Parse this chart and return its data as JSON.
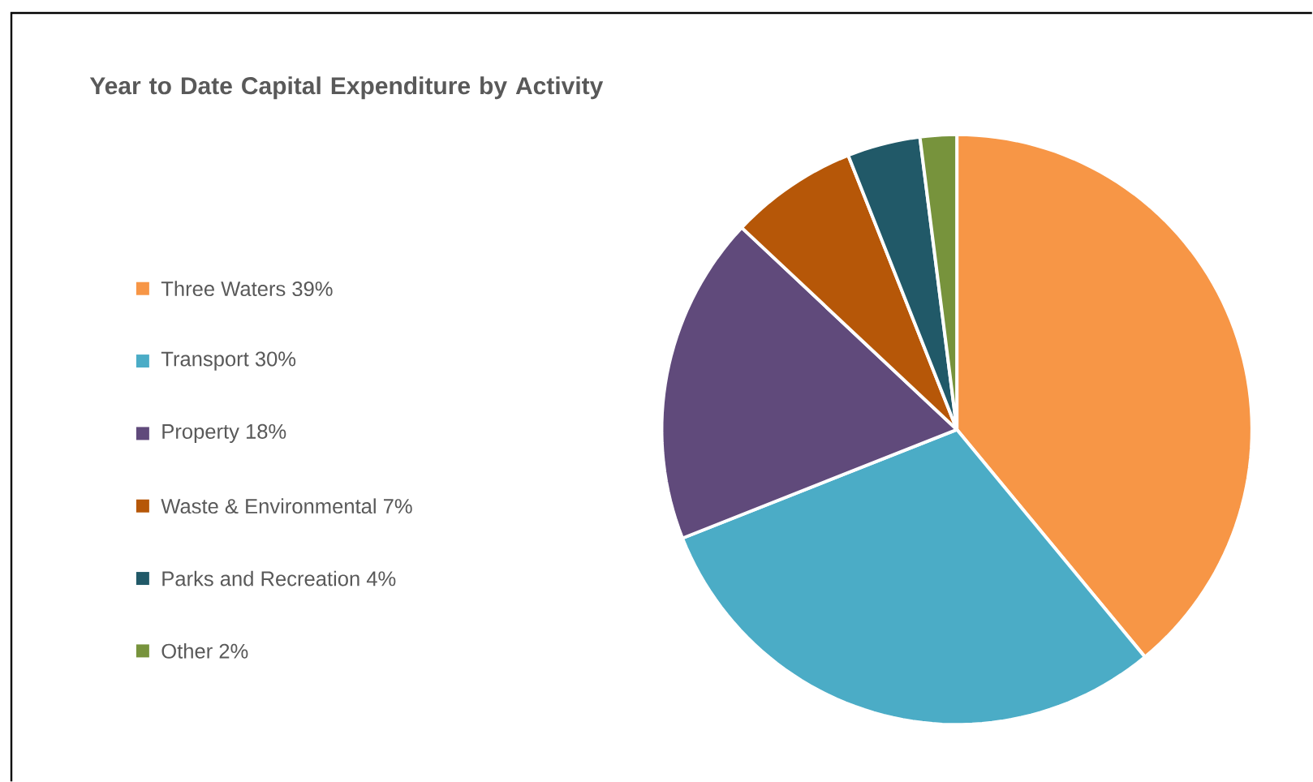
{
  "chart_data": {
    "type": "pie",
    "title": "Year to Date Capital Expenditure by Activity",
    "categories": [
      "Three Waters 39%",
      "Transport 30%",
      "Property 18%",
      "Waste & Environmental 7%",
      "Parks and Recreation 4%",
      "Other 2%"
    ],
    "values": [
      39,
      30,
      18,
      7,
      4,
      2
    ],
    "colors": [
      "#f79646",
      "#4bacc6",
      "#604a7b",
      "#b65708",
      "#215968",
      "#77933c"
    ],
    "legend": "left"
  }
}
